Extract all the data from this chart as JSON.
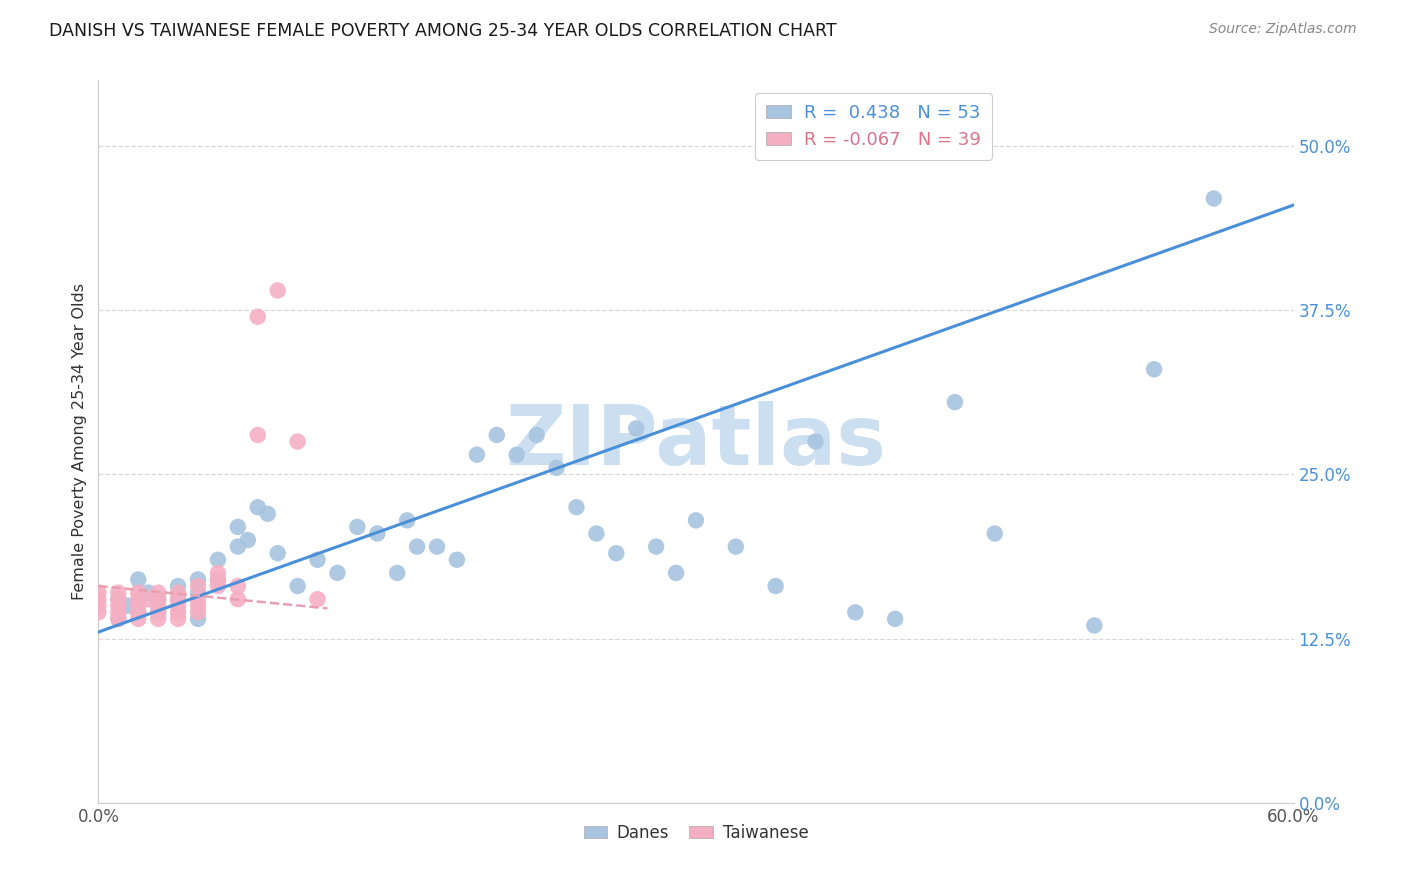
{
  "title": "DANISH VS TAIWANESE FEMALE POVERTY AMONG 25-34 YEAR OLDS CORRELATION CHART",
  "source": "Source: ZipAtlas.com",
  "ylabel": "Female Poverty Among 25-34 Year Olds",
  "xlim": [
    0.0,
    0.6
  ],
  "ylim": [
    0.0,
    0.55
  ],
  "xticks": [
    0.0,
    0.1,
    0.2,
    0.3,
    0.4,
    0.5,
    0.6
  ],
  "xticklabels": [
    "0.0%",
    "",
    "",
    "",
    "",
    "",
    "60.0%"
  ],
  "yticks": [
    0.0,
    0.125,
    0.25,
    0.375,
    0.5
  ],
  "yticklabels": [
    "0.0%",
    "12.5%",
    "25.0%",
    "37.5%",
    "50.0%"
  ],
  "danes_R": 0.438,
  "danes_N": 53,
  "taiwanese_R": -0.067,
  "taiwanese_N": 39,
  "danes_color": "#a8c4e0",
  "taiwanese_color": "#f4afc3",
  "trend_danes_color": "#4a90d9",
  "trend_taiwanese_color": "#e8a0b0",
  "danes_x": [
    0.01,
    0.01,
    0.015,
    0.02,
    0.02,
    0.025,
    0.03,
    0.03,
    0.04,
    0.04,
    0.05,
    0.05,
    0.05,
    0.06,
    0.06,
    0.07,
    0.07,
    0.075,
    0.08,
    0.085,
    0.09,
    0.1,
    0.11,
    0.12,
    0.13,
    0.14,
    0.15,
    0.155,
    0.16,
    0.17,
    0.18,
    0.19,
    0.2,
    0.21,
    0.22,
    0.23,
    0.24,
    0.25,
    0.26,
    0.27,
    0.28,
    0.29,
    0.3,
    0.32,
    0.34,
    0.36,
    0.38,
    0.4,
    0.43,
    0.45,
    0.5,
    0.53,
    0.56
  ],
  "danes_y": [
    0.155,
    0.14,
    0.15,
    0.145,
    0.17,
    0.16,
    0.155,
    0.145,
    0.165,
    0.155,
    0.17,
    0.16,
    0.14,
    0.185,
    0.17,
    0.21,
    0.195,
    0.2,
    0.225,
    0.22,
    0.19,
    0.165,
    0.185,
    0.175,
    0.21,
    0.205,
    0.175,
    0.215,
    0.195,
    0.195,
    0.185,
    0.265,
    0.28,
    0.265,
    0.28,
    0.255,
    0.225,
    0.205,
    0.19,
    0.285,
    0.195,
    0.175,
    0.215,
    0.195,
    0.165,
    0.275,
    0.145,
    0.14,
    0.305,
    0.205,
    0.135,
    0.33,
    0.46
  ],
  "taiwanese_x": [
    0.0,
    0.0,
    0.0,
    0.0,
    0.01,
    0.01,
    0.01,
    0.01,
    0.01,
    0.02,
    0.02,
    0.02,
    0.02,
    0.02,
    0.025,
    0.03,
    0.03,
    0.03,
    0.03,
    0.03,
    0.04,
    0.04,
    0.04,
    0.04,
    0.04,
    0.05,
    0.05,
    0.05,
    0.05,
    0.06,
    0.06,
    0.06,
    0.07,
    0.07,
    0.08,
    0.08,
    0.09,
    0.1,
    0.11
  ],
  "taiwanese_y": [
    0.16,
    0.155,
    0.15,
    0.145,
    0.16,
    0.155,
    0.15,
    0.145,
    0.14,
    0.16,
    0.155,
    0.15,
    0.145,
    0.14,
    0.155,
    0.16,
    0.155,
    0.15,
    0.145,
    0.14,
    0.16,
    0.155,
    0.15,
    0.145,
    0.14,
    0.165,
    0.155,
    0.15,
    0.145,
    0.175,
    0.17,
    0.165,
    0.165,
    0.155,
    0.28,
    0.37,
    0.39,
    0.275,
    0.155
  ],
  "trend_danes_x0": 0.0,
  "trend_danes_x1": 0.6,
  "trend_danes_y0": 0.13,
  "trend_danes_y1": 0.455,
  "trend_taiwanese_x0": 0.0,
  "trend_taiwanese_x1": 0.115,
  "trend_taiwanese_y0": 0.165,
  "trend_taiwanese_y1": 0.148,
  "watermark": "ZIPatlas",
  "watermark_color": "#ccdff0",
  "background_color": "#ffffff",
  "legend_blue_color": "#4a90d9",
  "legend_pink_color": "#d9748a",
  "grid_color": "#d8d8d8"
}
